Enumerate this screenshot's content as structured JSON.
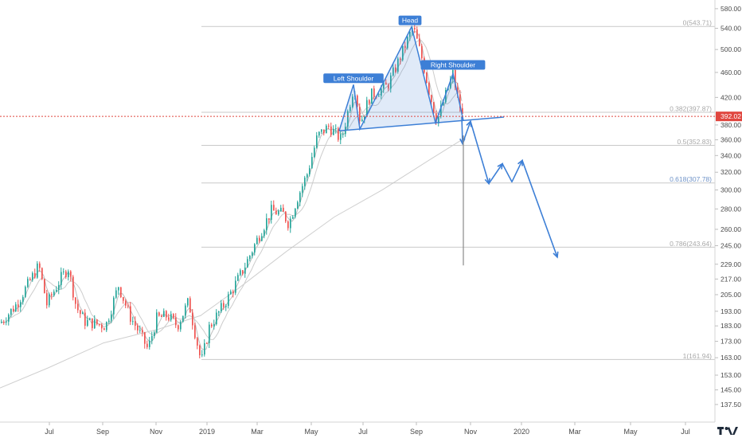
{
  "chart_data": {
    "type": "candlestick",
    "y_scale": "log",
    "ylim": [
      132,
      590
    ],
    "price_tick_labels": [
      "580.00",
      "540.00",
      "500.00",
      "460.00",
      "420.00",
      "380.00",
      "360.00",
      "340.00",
      "320.00",
      "300.00",
      "280.00",
      "260.00",
      "245.00",
      "229.00",
      "217.00",
      "205.00",
      "193.00",
      "183.00",
      "173.00",
      "163.00",
      "153.00",
      "145.00",
      "137.50"
    ],
    "time_tick_labels": [
      "Jul",
      "Sep",
      "Nov",
      "2019",
      "Mar",
      "May",
      "Jul",
      "Sep",
      "Nov",
      "2020",
      "Mar",
      "May",
      "Jul"
    ],
    "current_price": {
      "label": "392.02",
      "value": 392.02,
      "color": "#e0463f"
    },
    "fib_levels": [
      {
        "label": "0(543.71)",
        "value": 543.71
      },
      {
        "label": "0.382(397.87)",
        "value": 397.87
      },
      {
        "label": "0.5(352.83)",
        "value": 352.83
      },
      {
        "label": "0.618(307.78)",
        "value": 307.78
      },
      {
        "label": "0.786(243.64)",
        "value": 243.64
      },
      {
        "label": "1(161.94)",
        "value": 161.94
      }
    ],
    "pattern_labels": [
      {
        "text": "Left Shoulder",
        "anchor_price": 440
      },
      {
        "text": "Head",
        "anchor_price": 543
      },
      {
        "text": "Right Shoulder",
        "anchor_price": 458
      }
    ],
    "pattern": {
      "left_shoulder_price": 440,
      "head_price": 543,
      "right_shoulder_price": 458,
      "neckline_prices": [
        372,
        391
      ]
    },
    "projection_path_prices": [
      392,
      355,
      385,
      307,
      330,
      309,
      334,
      235
    ],
    "measured_move_target": 228,
    "colors": {
      "up": "#26a69a",
      "down": "#ef5350",
      "pattern": "#3d7fd6",
      "pattern_fill": "rgba(61,127,214,0.16)",
      "fib_line": "#c9c9c9",
      "fib_label": "#a8a8a8",
      "fib_label_blue": "#6f93c8",
      "ma": "#b7b7b7",
      "axis_text": "#4a4a4a",
      "grid": "#eeeeee"
    },
    "logo_icon": "tradingview-logo"
  }
}
